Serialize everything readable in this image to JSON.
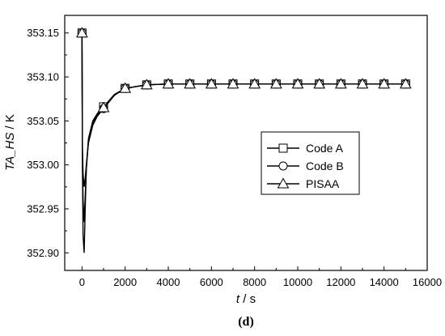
{
  "chart_data": {
    "type": "line",
    "panel_label": "d",
    "xlabel": {
      "var": "t",
      "unit": " / s"
    },
    "ylabel": {
      "var": "TA_HS",
      "unit": " / K"
    },
    "xlim": [
      -800,
      16000
    ],
    "ylim": [
      352.88,
      353.17
    ],
    "xticks": [
      "0",
      "2000",
      "4000",
      "6000",
      "8000",
      "10000",
      "12000",
      "14000",
      "16000"
    ],
    "yticks": [
      "352.90",
      "352.95",
      "353.00",
      "353.05",
      "353.10",
      "353.15"
    ],
    "grid": false,
    "legend_position": "middle-right",
    "series": [
      {
        "name": "Code A",
        "marker": "square",
        "x": [
          0,
          5,
          20,
          50,
          100,
          150,
          200,
          300,
          500,
          700,
          1000,
          1500,
          2000,
          2500,
          3000,
          4000,
          5000,
          6000,
          7000,
          8000,
          9000,
          10000,
          11000,
          12000,
          13000,
          14000,
          15000
        ],
        "y": [
          353.15,
          353.11,
          353.0,
          352.92,
          352.9,
          352.95,
          352.995,
          353.03,
          353.05,
          353.058,
          353.066,
          353.08,
          353.087,
          353.089,
          353.091,
          353.092,
          353.092,
          353.092,
          353.092,
          353.092,
          353.092,
          353.092,
          353.092,
          353.092,
          353.092,
          353.092,
          353.092
        ],
        "marker_x": [
          0,
          1000,
          2000,
          3000,
          4000,
          5000,
          6000,
          7000,
          8000,
          9000,
          10000,
          11000,
          12000,
          13000,
          14000,
          15000
        ]
      },
      {
        "name": "Code B",
        "marker": "circle",
        "x": [
          0,
          5,
          20,
          50,
          100,
          150,
          200,
          300,
          500,
          700,
          1000,
          1500,
          2000,
          2500,
          3000,
          4000,
          5000,
          6000,
          7000,
          8000,
          9000,
          10000,
          11000,
          12000,
          13000,
          14000,
          15000
        ],
        "y": [
          353.15,
          353.11,
          353.02,
          352.99,
          352.975,
          352.985,
          353.0,
          353.025,
          353.045,
          353.055,
          353.064,
          353.079,
          353.087,
          353.089,
          353.091,
          353.092,
          353.092,
          353.092,
          353.092,
          353.092,
          353.092,
          353.092,
          353.092,
          353.092,
          353.092,
          353.092,
          353.092
        ],
        "marker_x": [
          0,
          1000,
          2000,
          3000,
          4000,
          5000,
          6000,
          7000,
          8000,
          9000,
          10000,
          11000,
          12000,
          13000,
          14000,
          15000
        ]
      },
      {
        "name": "PISAA",
        "marker": "triangle",
        "x": [
          0,
          5,
          20,
          50,
          100,
          150,
          200,
          300,
          500,
          700,
          1000,
          1500,
          2000,
          2500,
          3000,
          4000,
          5000,
          6000,
          7000,
          8000,
          9000,
          10000,
          11000,
          12000,
          13000,
          14000,
          15000
        ],
        "y": [
          353.15,
          353.11,
          353.01,
          352.96,
          352.935,
          352.965,
          352.995,
          353.028,
          353.048,
          353.057,
          353.065,
          353.08,
          353.087,
          353.089,
          353.091,
          353.092,
          353.092,
          353.092,
          353.092,
          353.092,
          353.092,
          353.092,
          353.092,
          353.092,
          353.092,
          353.092,
          353.092
        ],
        "marker_x": [
          0,
          1000,
          2000,
          3000,
          4000,
          5000,
          6000,
          7000,
          8000,
          9000,
          10000,
          11000,
          12000,
          13000,
          14000,
          15000
        ]
      }
    ]
  }
}
